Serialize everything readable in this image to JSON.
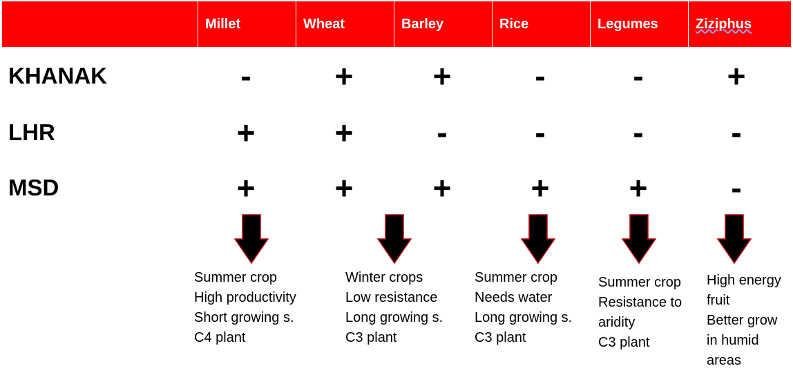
{
  "crops": [
    "Millet",
    "Wheat",
    "Barley",
    "Rice",
    "Legumes",
    "Ziziphus"
  ],
  "rows": [
    {
      "label": "KHANAK",
      "values": [
        "-",
        "+",
        "+",
        "-",
        "-",
        "+"
      ]
    },
    {
      "label": "LHR",
      "values": [
        "+",
        "+",
        "-",
        "-",
        "-",
        "-"
      ]
    },
    {
      "label": "MSD",
      "values": [
        "+",
        "+",
        "+",
        "+",
        "+",
        "-"
      ]
    }
  ],
  "notes": [
    {
      "crop": "Millet",
      "lines": [
        "Summer crop",
        "High productivity",
        "Short growing s.",
        "C4 plant"
      ]
    },
    {
      "crop": "Wheat",
      "lines": [
        "Winter crops",
        "Low resistance",
        "Long growing s.",
        "C3 plant"
      ]
    },
    {
      "crop": "Rice",
      "lines": [
        "Summer crop",
        "Needs water",
        "Long growing s.",
        "C3 plant"
      ]
    },
    {
      "crop": "Legumes",
      "lines": [
        "Summer crop",
        "Resistance to",
        "aridity",
        "C3 plant"
      ]
    },
    {
      "crop": "Ziziphus",
      "lines": [
        "High energy",
        "fruit",
        "Better grow",
        "in humid",
        "areas"
      ]
    }
  ],
  "colors": {
    "header_bg": "#ff0000",
    "header_text": "#ffffff",
    "arrow_fill": "#000000",
    "arrow_stroke": "#c00000"
  }
}
